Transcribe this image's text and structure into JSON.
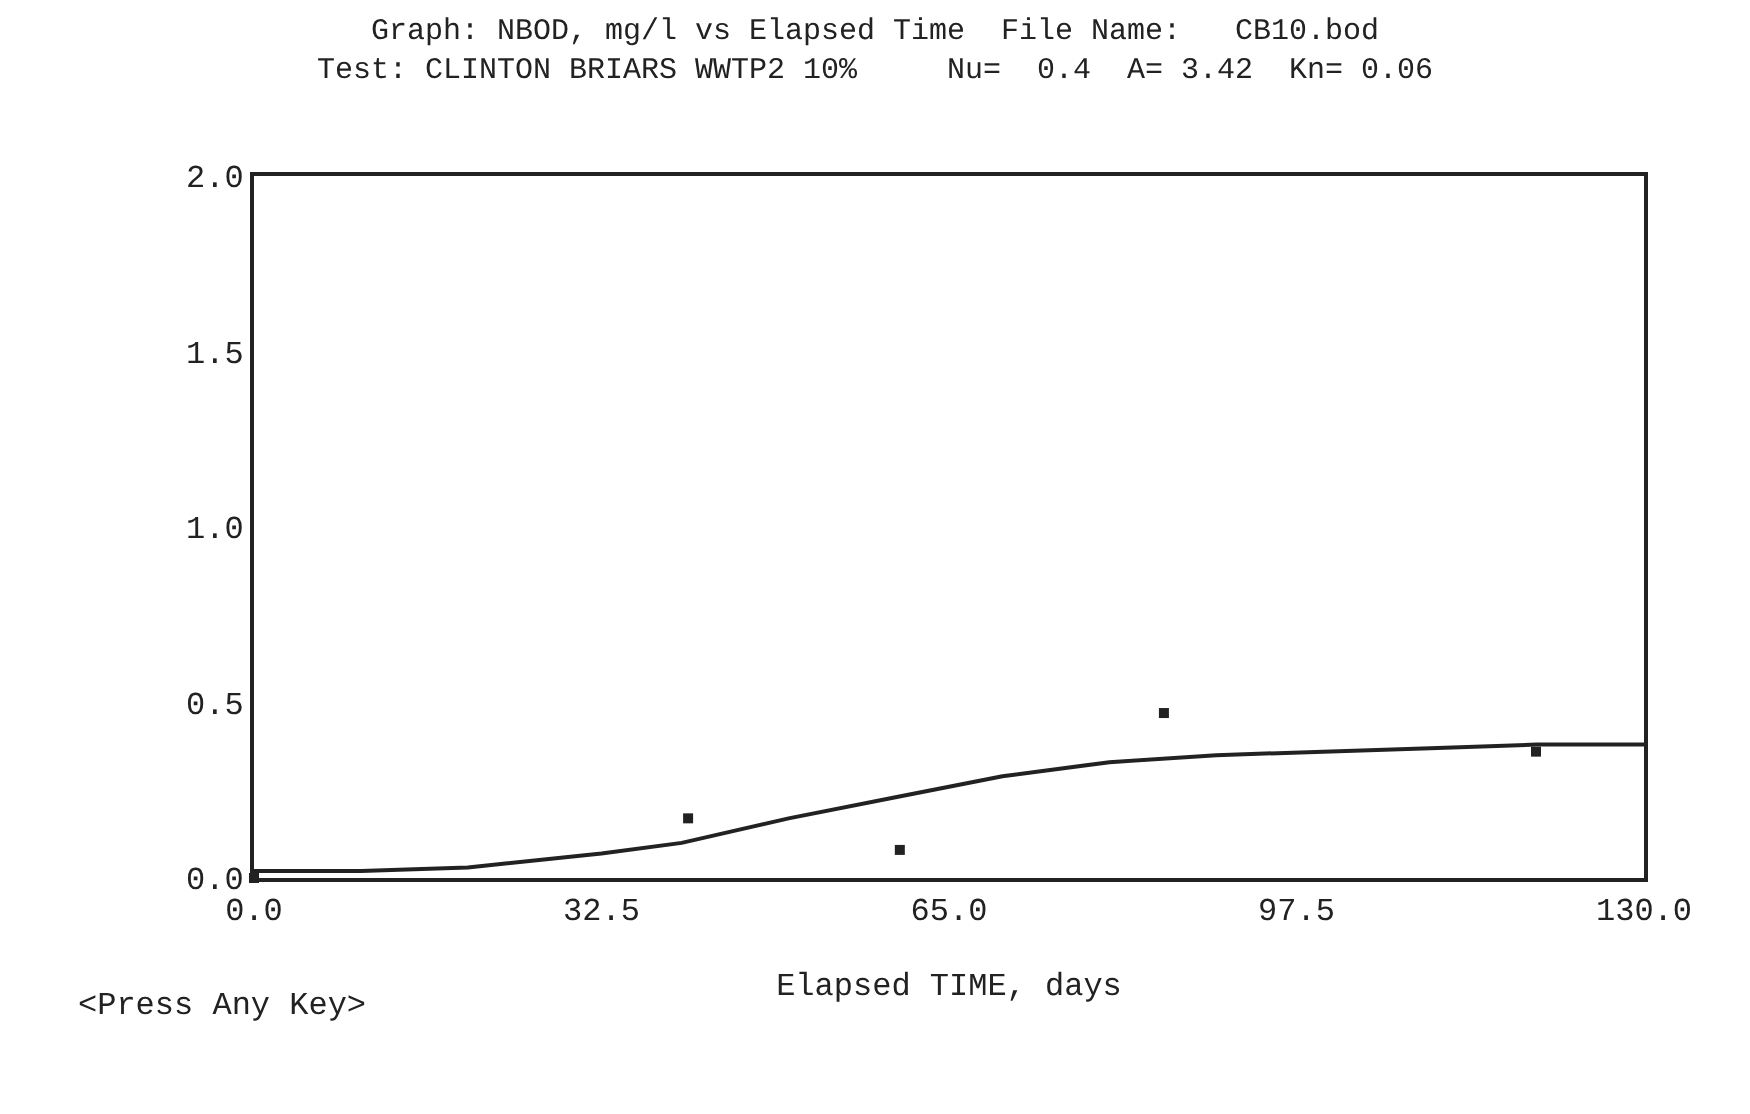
{
  "chart_data": {
    "type": "scatter",
    "title": "Graph: NBOD, mg/l vs Elapsed Time  File Name:   CB10.bod\nTest: CLINTON BRIARS WWTP2 10%     Nu=  0.4  A= 3.42  Kn= 0.06",
    "xlabel": "Elapsed TIME, days",
    "annotations": [
      "<Press Any Key>"
    ],
    "series": [
      {
        "color": "#222222",
        "marker": "square",
        "x": [
          0,
          40.6,
          60.4,
          85.1,
          119.9
        ],
        "values": [
          0.0,
          0.17,
          0.08,
          0.47,
          0.36
        ]
      },
      {
        "type": "line",
        "color": "#222222",
        "marker": "none",
        "x": [
          0,
          10,
          20,
          32.5,
          40,
          50,
          60,
          70,
          80,
          90,
          100,
          110,
          120,
          130
        ],
        "values": [
          0.02,
          0.02,
          0.03,
          0.07,
          0.1,
          0.17,
          0.23,
          0.29,
          0.33,
          0.35,
          0.36,
          0.37,
          0.38,
          0.38
        ]
      }
    ],
    "xlim": [
      0,
      130
    ],
    "xticks": [
      {
        "value": 0,
        "label": "0.0"
      },
      32.5,
      {
        "value": 65,
        "label": "65.0"
      },
      97.5,
      {
        "value": 130,
        "label": "130.0"
      }
    ],
    "ylim": [
      0,
      2
    ],
    "line_style": "solid",
    "yticks": [
      {
        "value": 0,
        "label": "0.0"
      },
      0.5,
      {
        "value": 1,
        "label": "1.0"
      },
      1.5,
      {
        "value": 2,
        "label": "2.0"
      }
    ],
    "tick_labels": "xy"
  }
}
